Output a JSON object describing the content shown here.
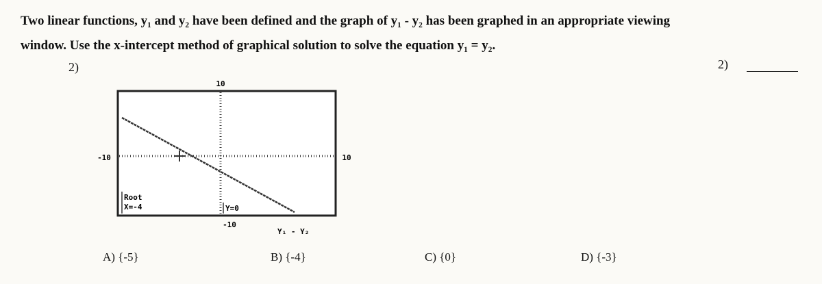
{
  "question": {
    "line1": "Two linear functions, y₁ and y₂ have been defined and the graph of y₁ - y₂ has been graphed in an appropriate viewing",
    "line2": "window. Use the x-intercept method of graphical solution to solve the equation y₁ = y₂.",
    "number": "2)",
    "answer_number": "2)"
  },
  "graph": {
    "ymax": "10",
    "xmin": "-10",
    "xmax": "10",
    "ymin": "-10",
    "root_label": "Root",
    "x_value": "X=-4",
    "y_value": "Y=0",
    "function": "Y₁ - Y₂"
  },
  "choices": [
    "A) {-5}",
    "B) {-4}",
    "C) {0}",
    "D) {-3}"
  ]
}
